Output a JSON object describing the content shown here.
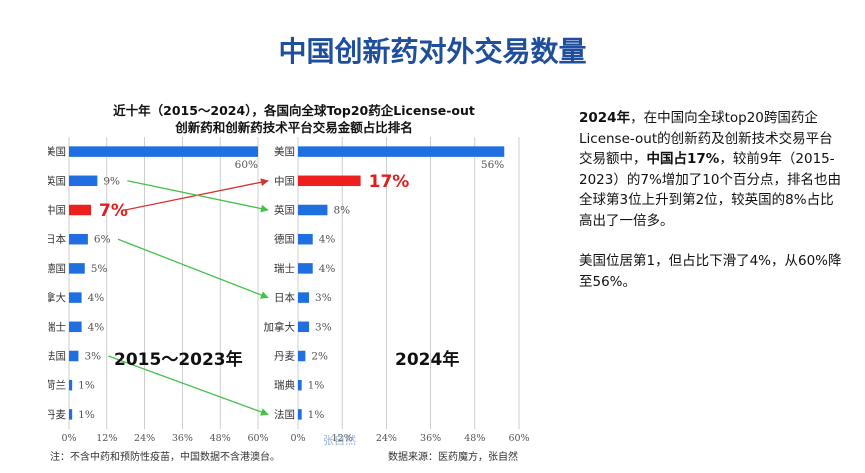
{
  "slide": {
    "title": "中国创新药对外交易数量"
  },
  "chart_data": {
    "type": "bar",
    "orientation": "horizontal",
    "title_lines": [
      "近十年（2015～2024），各国向全球Top20药企License-out",
      "创新药和创新药技术平台交易金额占比排名"
    ],
    "x_ticks": [
      "0%",
      "12%",
      "24%",
      "36%",
      "48%",
      "60%"
    ],
    "xlim": [
      0,
      60
    ],
    "grid": true,
    "panels": [
      {
        "name": "2015～2023年",
        "categories": [
          "美国",
          "英国",
          "中国",
          "日本",
          "德国",
          "加拿大",
          "瑞士",
          "法国",
          "荷兰",
          "丹麦"
        ],
        "values": [
          60,
          9,
          7,
          6,
          5,
          4,
          4,
          3,
          1,
          1
        ],
        "labels": [
          "60%",
          "9%",
          "7%",
          "6%",
          "5%",
          "4%",
          "4%",
          "3%",
          "1%",
          "1%"
        ],
        "highlight_index": 2
      },
      {
        "name": "2024年",
        "categories": [
          "美国",
          "中国",
          "英国",
          "德国",
          "瑞士",
          "日本",
          "加拿大",
          "丹麦",
          "瑞典",
          "法国"
        ],
        "values": [
          56,
          17,
          8,
          4,
          4,
          3,
          3,
          2,
          1,
          1
        ],
        "labels": [
          "56%",
          "17%",
          "8%",
          "4%",
          "4%",
          "3%",
          "3%",
          "2%",
          "1%",
          "1%"
        ],
        "highlight_index": 1
      }
    ],
    "rank_changes": [
      {
        "from": "中国",
        "to": "中国",
        "color": "#d9312b"
      },
      {
        "from": "英国",
        "to": "英国",
        "color": "#43c14a"
      },
      {
        "from": "日本",
        "to": "日本",
        "color": "#43c14a"
      },
      {
        "from": "法国",
        "to": "法国",
        "color": "#43c14a"
      }
    ],
    "colors": {
      "bar": "#1f6fe0",
      "highlight": "#ee1f1f",
      "grid": "#b8b8b8"
    },
    "note": "注：不含中药和预防性疫苗，中国数据不含港澳台。",
    "source": "数据来源：医药魔方，张自然",
    "watermark": "张自然"
  },
  "summary": {
    "p1_bold_a": "2024年",
    "p1_text_a": "，在中国向全球top20跨国药企License-out的创新药及创新技术交易平台交易额中，",
    "p1_bold_b": "中国占17%",
    "p1_text_b": "，较前9年（2015-2023）的7%增加了10个百分点，排名也由全球第3位上升到第2位，较英国的8%占比高出了一倍多。",
    "p2": "美国位居第1，但占比下滑了4%，从60%降至56%。"
  }
}
